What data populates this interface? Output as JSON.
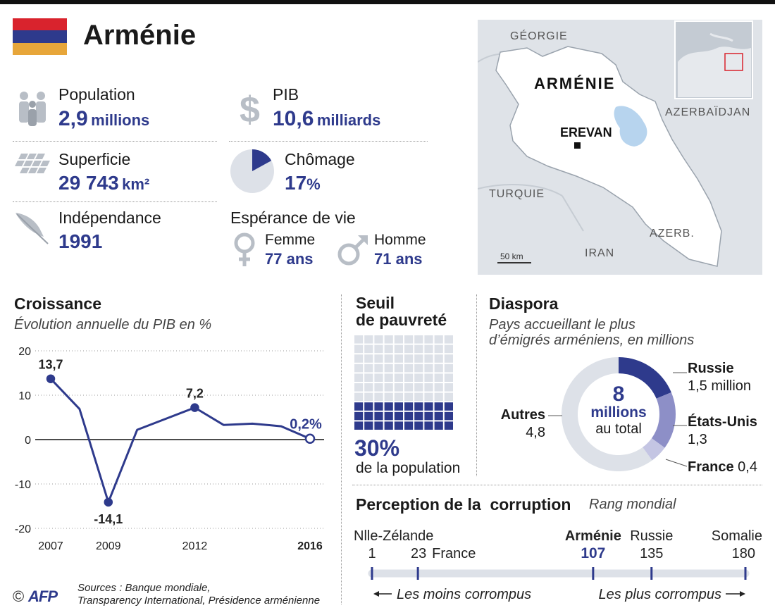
{
  "header": {
    "title": "Arménie"
  },
  "flag_colors": [
    "#d9232d",
    "#2e3a8c",
    "#e7a63a"
  ],
  "accent": "#2e3a8c",
  "stats": {
    "population": {
      "label": "Population",
      "value": "2,9",
      "unit": "millions"
    },
    "pib": {
      "label": "PIB",
      "value": "10,6",
      "unit": "milliards"
    },
    "superficie": {
      "label": "Superficie",
      "value": "29 743",
      "unit": "km²"
    },
    "chomage": {
      "label": "Chômage",
      "value": "17",
      "unit": "%"
    },
    "independance": {
      "label": "Indépendance",
      "value": "1991"
    },
    "esperance": {
      "label": "Espérance de vie",
      "femme_label": "Femme",
      "femme_value": "77 ans",
      "homme_label": "Homme",
      "homme_value": "71 ans"
    }
  },
  "map": {
    "country": "ARMÉNIE",
    "capital": "EREVAN",
    "neighbors": {
      "georgia": "GÉORGIE",
      "azerbaijan": "AZERBAÏDJAN",
      "turkey": "TURQUIE",
      "iran": "IRAN",
      "azerb": "AZERB."
    },
    "scale": "50 km"
  },
  "croissance": {
    "title": "Croissance",
    "subtitle": "Évolution annuelle du PIB en %"
  },
  "seuil": {
    "title_line1": "Seuil",
    "title_line2": "de pauvreté",
    "value": "30%",
    "caption": "de la population"
  },
  "diaspora": {
    "title": "Diaspora",
    "subtitle_line1": "Pays accueillant le plus",
    "subtitle_line2": "d’émigrés arméniens, en millions",
    "center_big": "8",
    "center_mid": "millions",
    "center_small": "au total",
    "labels": [
      {
        "name": "Russie",
        "value": "1,5 million"
      },
      {
        "name": "États-Unis",
        "value": "1,3"
      },
      {
        "name": "France",
        "value": "0,4"
      },
      {
        "name": "Autres",
        "value": "4,8"
      }
    ]
  },
  "corruption": {
    "title": "Perception de la  corruption",
    "subtitle": "Rang mondial",
    "points": [
      {
        "name": "Nlle-Zélande",
        "rank": "1"
      },
      {
        "name": "France",
        "rank": "23"
      },
      {
        "name": "Arménie",
        "rank": "107"
      },
      {
        "name": "Russie",
        "rank": "135"
      },
      {
        "name": "Somalie",
        "rank": "180"
      }
    ],
    "left_caption": "Les moins corrompus",
    "right_caption": "Les plus corrompus"
  },
  "footer": {
    "copyright": "©",
    "logo": "AFP",
    "sources_line1": "Sources : Banque mondiale,",
    "sources_line2": "Transparency International, Présidence arménienne"
  },
  "chart_data": [
    {
      "type": "line",
      "title": "Croissance",
      "subtitle": "Évolution annuelle du PIB en %",
      "x": [
        2007,
        2008,
        2009,
        2010,
        2011,
        2012,
        2013,
        2014,
        2015,
        2016
      ],
      "y": [
        13.7,
        6.9,
        -14.1,
        2.2,
        4.7,
        7.2,
        3.3,
        3.6,
        3.0,
        0.2
      ],
      "xticks": [
        "2007",
        "2009",
        "2012",
        "2016"
      ],
      "yticks": [
        "20",
        "10",
        "0",
        "-10",
        "-20"
      ],
      "ylim": [
        -20,
        20
      ],
      "labels": [
        {
          "x": 2007,
          "text": "13,7"
        },
        {
          "x": 2009,
          "text": "-14,1"
        },
        {
          "x": 2012,
          "text": "7,2"
        },
        {
          "x": 2016,
          "text": "0,2%"
        }
      ],
      "grid": true
    },
    {
      "type": "pie",
      "title": "Chômage",
      "values": [
        17,
        83
      ]
    },
    {
      "type": "bar",
      "title": "Seuil de pauvreté",
      "values": [
        30
      ]
    },
    {
      "type": "pie",
      "title": "Diaspora",
      "categories": [
        "Russie",
        "États-Unis",
        "France",
        "Autres"
      ],
      "values": [
        1.5,
        1.3,
        0.4,
        4.8
      ],
      "colors": [
        "#2e3a8c",
        "#8d8fc7",
        "#c4c5e3",
        "#dde1e8"
      ]
    },
    {
      "type": "scatter",
      "title": "Perception de la  corruption",
      "categories": [
        "Nlle-Zélande",
        "France",
        "Arménie",
        "Russie",
        "Somalie"
      ],
      "values": [
        1,
        23,
        107,
        135,
        180
      ],
      "xlim": [
        1,
        180
      ]
    }
  ]
}
